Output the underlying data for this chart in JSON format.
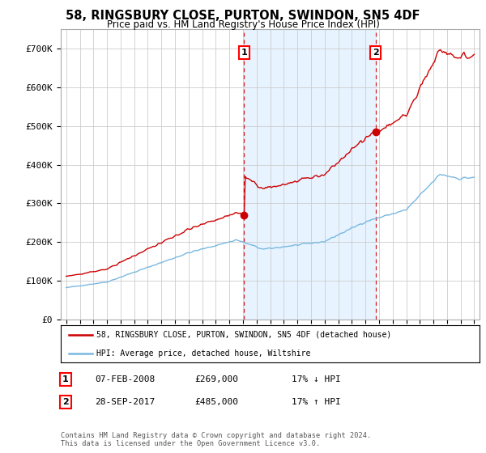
{
  "title": "58, RINGSBURY CLOSE, PURTON, SWINDON, SN5 4DF",
  "subtitle": "Price paid vs. HM Land Registry's House Price Index (HPI)",
  "background_color": "#ffffff",
  "plot_bg_color": "#ffffff",
  "grid_color": "#cccccc",
  "hpi_color": "#7ab8e0",
  "price_color": "#cc0000",
  "sale1_price": 269000,
  "sale1_label": "1",
  "sale1_year": 2008.1,
  "sale2_price": 485000,
  "sale2_label": "2",
  "sale2_year": 2017.75,
  "ylim_min": 0,
  "ylim_max": 750000,
  "yticks": [
    0,
    100000,
    200000,
    300000,
    400000,
    500000,
    600000,
    700000
  ],
  "ytick_labels": [
    "£0",
    "£100K",
    "£200K",
    "£300K",
    "£400K",
    "£500K",
    "£600K",
    "£700K"
  ],
  "legend_label1": "58, RINGSBURY CLOSE, PURTON, SWINDON, SN5 4DF (detached house)",
  "legend_label2": "HPI: Average price, detached house, Wiltshire",
  "table_row1": [
    "1",
    "07-FEB-2008",
    "£269,000",
    "17% ↓ HPI"
  ],
  "table_row2": [
    "2",
    "28-SEP-2017",
    "£485,000",
    "17% ↑ HPI"
  ],
  "footnote": "Contains HM Land Registry data © Crown copyright and database right 2024.\nThis data is licensed under the Open Government Licence v3.0.",
  "shade_color": "#ddeeff",
  "xstart_year": 1995,
  "xend_year": 2025
}
